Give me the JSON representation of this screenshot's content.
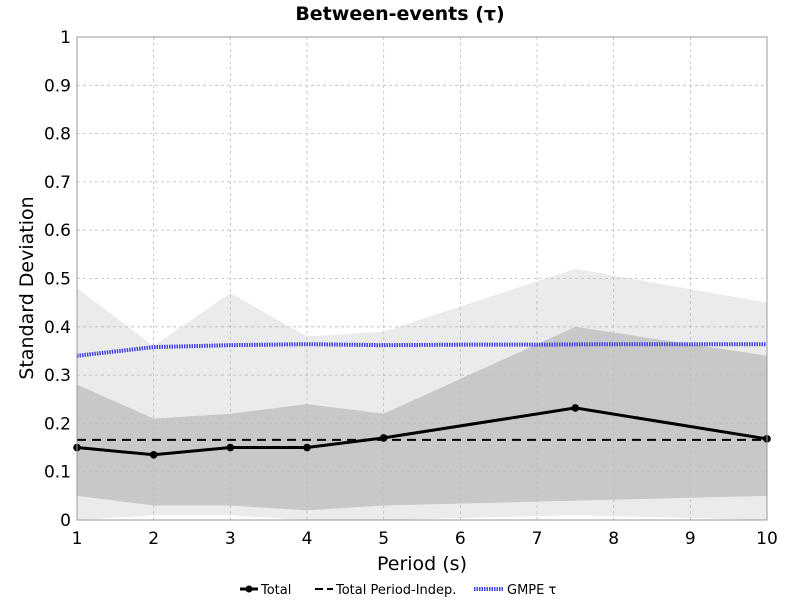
{
  "chart_data": {
    "type": "line",
    "title": "Between-events (τ)",
    "xlabel": "Period (s)",
    "ylabel": "Standard Deviation",
    "xlim": [
      1,
      10
    ],
    "ylim": [
      0,
      1
    ],
    "x_ticks": [
      "1",
      "2",
      "3",
      "4",
      "5",
      "6",
      "7",
      "8",
      "9",
      "10"
    ],
    "y_ticks": [
      "0",
      "0.1",
      "0.2",
      "0.3",
      "0.4",
      "0.5",
      "0.6",
      "0.7",
      "0.8",
      "0.9",
      "1"
    ],
    "grid": true,
    "legend_position": "bottom",
    "bands": [
      {
        "kind": "outer-range",
        "color": "#ebebeb",
        "x": [
          1,
          2,
          3,
          4,
          5,
          7.5,
          10
        ],
        "upper": [
          0.48,
          0.36,
          0.47,
          0.38,
          0.39,
          0.52,
          0.45
        ],
        "lower": [
          0.0,
          0.01,
          0.01,
          0.0,
          0.0,
          0.01,
          0.0
        ]
      },
      {
        "kind": "inner-range",
        "color": "#c8c8c8",
        "x": [
          1,
          2,
          3,
          4,
          5,
          7.5,
          10
        ],
        "upper": [
          0.28,
          0.21,
          0.22,
          0.24,
          0.22,
          0.4,
          0.34
        ],
        "lower": [
          0.05,
          0.03,
          0.03,
          0.02,
          0.03,
          0.04,
          0.05
        ]
      }
    ],
    "series": [
      {
        "name": "Total",
        "color": "#000000",
        "style": "solid-markers",
        "x": [
          1,
          2,
          3,
          4,
          5,
          7.5,
          10
        ],
        "values": [
          0.15,
          0.135,
          0.15,
          0.15,
          0.17,
          0.232,
          0.168
        ]
      },
      {
        "name": "Total Period-Indep.",
        "color": "#000000",
        "style": "dashed",
        "x": [
          1,
          10
        ],
        "values": [
          0.166,
          0.166
        ]
      },
      {
        "name": "GMPE τ",
        "color": "#4646e6",
        "style": "dotted-thick",
        "x": [
          1,
          2,
          3,
          4,
          5,
          6,
          7,
          8,
          9,
          10
        ],
        "values": [
          0.34,
          0.358,
          0.362,
          0.364,
          0.362,
          0.363,
          0.363,
          0.364,
          0.364,
          0.364
        ]
      }
    ]
  }
}
